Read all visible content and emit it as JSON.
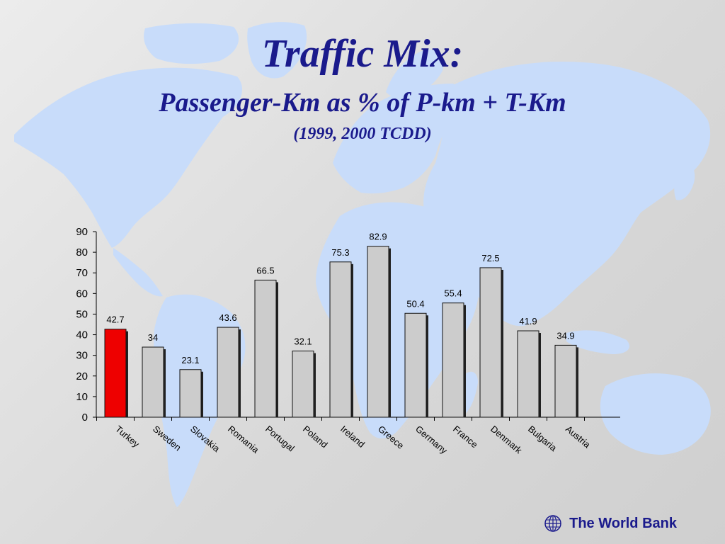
{
  "header": {
    "title": "Traffic Mix:",
    "subtitle": "Passenger-Km as % of P-km + T-Km",
    "note": "(1999, 2000 TCDD)"
  },
  "footer": {
    "label": "The World Bank",
    "icon": "globe-icon"
  },
  "colors": {
    "highlight_bar": "#ee0000",
    "default_bar": "#cccccc",
    "title_text": "#1a1a8c",
    "map_fill": "#c8dcfa"
  },
  "chart_data": {
    "type": "bar",
    "categories": [
      "Turkey",
      "Sweden",
      "Slovakia",
      "Romania",
      "Portugal",
      "Poland",
      "Ireland",
      "Greece",
      "Germany",
      "France",
      "Denmark",
      "Bulgaria",
      "Austria"
    ],
    "values": [
      42.7,
      34,
      23.1,
      43.6,
      66.5,
      32.1,
      75.3,
      82.9,
      50.4,
      55.4,
      72.5,
      41.9,
      34.9
    ],
    "value_labels": [
      "42.7",
      "34",
      "23.1",
      "43.6",
      "66.5",
      "32.1",
      "75.3",
      "82.9",
      "50.4",
      "55.4",
      "72.5",
      "41.9",
      "34.9"
    ],
    "highlighted_category": "Turkey",
    "ylim": [
      0,
      90
    ],
    "yticks": [
      0,
      10,
      20,
      30,
      40,
      50,
      60,
      70,
      80,
      90
    ],
    "xlabel": "",
    "ylabel": "",
    "grid": false,
    "legend": "none",
    "data_labels": true
  }
}
